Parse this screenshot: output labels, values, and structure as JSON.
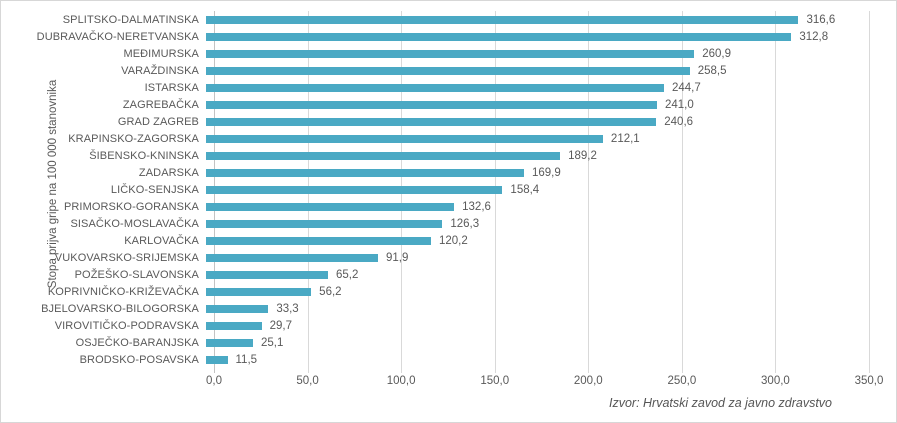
{
  "chart_data": {
    "type": "bar",
    "orientation": "horizontal",
    "title": "",
    "xlabel": "",
    "ylabel": "Stopa prijva gripe na 100 000 stanovnika",
    "xlim": [
      0,
      350
    ],
    "x_ticks": [
      0,
      50,
      100,
      150,
      200,
      250,
      300,
      350
    ],
    "x_tick_labels": [
      "0,0",
      "50,0",
      "100,0",
      "150,0",
      "200,0",
      "250,0",
      "300,0",
      "350,0"
    ],
    "grid": "vertical",
    "legend": "none",
    "bar_color": "#4aa9c4",
    "categories": [
      "SPLITSKO-DALMATINSKA",
      "DUBRAVAČKO-NERETVANSKA",
      "MEĐIMURSKA",
      "VARAŽDINSKA",
      "ISTARSKA",
      "ZAGREBAČKA",
      "GRAD ZAGREB",
      "KRAPINSKO-ZAGORSKA",
      "ŠIBENSKO-KNINSKA",
      "ZADARSKA",
      "LIČKO-SENJSKA",
      "PRIMORSKO-GORANSKA",
      "SISAČKO-MOSLAVAČKA",
      "KARLOVAČKA",
      "VUKOVARSKO-SRIJEMSKA",
      "POŽEŠKO-SLAVONSKA",
      "KOPRIVNIČKO-KRIŽEVAČKA",
      "BJELOVARSKO-BILOGORSKA",
      "VIROVITIČKO-PODRAVSKA",
      "OSJEČKO-BARANJSKA",
      "BRODSKO-POSAVSKA"
    ],
    "values": [
      316.6,
      312.8,
      260.9,
      258.5,
      244.7,
      241.0,
      240.6,
      212.1,
      189.2,
      169.9,
      158.4,
      132.6,
      126.3,
      120.2,
      91.9,
      65.2,
      56.2,
      33.3,
      29.7,
      25.1,
      11.5
    ],
    "value_labels": [
      "316,6",
      "312,8",
      "260,9",
      "258,5",
      "244,7",
      "241,0",
      "240,6",
      "212,1",
      "189,2",
      "169,9",
      "158,4",
      "132,6",
      "126,3",
      "120,2",
      "91,9",
      "65,2",
      "56,2",
      "33,3",
      "29,7",
      "25,1",
      "11,5"
    ],
    "source_note": "Izvor: Hrvatski zavod za javno zdravstvo"
  }
}
